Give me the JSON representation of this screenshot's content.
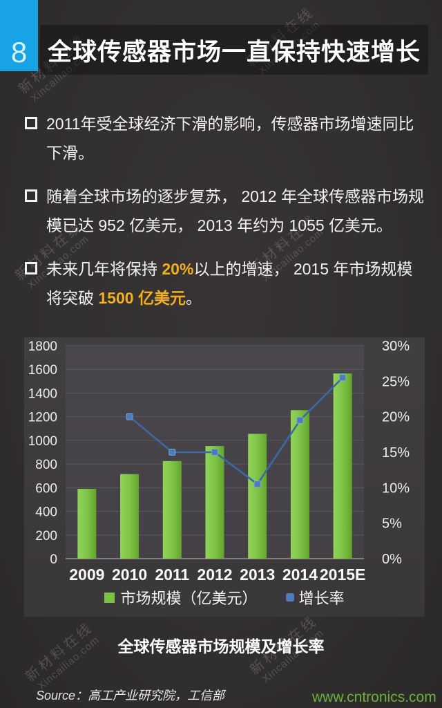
{
  "page": {
    "number": "8",
    "title": "全球传感器市场一直保持快速增长"
  },
  "bullets": [
    {
      "segments": [
        {
          "text": "2011年受全球经济下滑的影响，传感器市场增速同比下滑。",
          "highlight": false
        }
      ]
    },
    {
      "segments": [
        {
          "text": "随着全球市场的逐步复苏， 2012 年全球传感器市场规模已达 952 亿美元， 2013 年约为 1055 亿美元。",
          "highlight": false
        }
      ]
    },
    {
      "segments": [
        {
          "text": "未来几年将保持 ",
          "highlight": false
        },
        {
          "text": "20%",
          "highlight": true
        },
        {
          "text": "以上的增速， 2015 年市场规模将突破 ",
          "highlight": false
        },
        {
          "text": "1500 亿美元",
          "highlight": true
        },
        {
          "text": "。",
          "highlight": false
        }
      ]
    }
  ],
  "chart_data": {
    "type": "bar",
    "title": "全球传感器市场规模及增长率",
    "categories": [
      "2009",
      "2010",
      "2011",
      "2012",
      "2013",
      "2014",
      "2015E"
    ],
    "series": [
      {
        "name": "市场规模（亿美元）",
        "type": "bar",
        "axis": "left",
        "color": "#7cc144",
        "values": [
          590,
          715,
          825,
          952,
          1055,
          1255,
          1565
        ]
      },
      {
        "name": "增长率",
        "type": "line",
        "axis": "right",
        "color": "#3c68a6",
        "values": [
          null,
          20,
          15,
          15,
          10.5,
          19.5,
          25.5
        ]
      }
    ],
    "left_axis": {
      "min": 0,
      "max": 1800,
      "step": 200,
      "tick_labels": [
        "0",
        "200",
        "400",
        "600",
        "800",
        "1000",
        "1200",
        "1400",
        "1600",
        "1800"
      ]
    },
    "right_axis": {
      "min": 0,
      "max": 30,
      "step": 5,
      "tick_labels": [
        "0%",
        "5%",
        "10%",
        "15%",
        "20%",
        "25%",
        "30%"
      ]
    },
    "grid": true,
    "legend_position": "bottom"
  },
  "source": "Source：高工产业研究院，工信部",
  "watermarks": {
    "site": "www.cntronics.com",
    "diagonal": {
      "line1": "新材料在线",
      "line2": "Xincailiao.com"
    }
  },
  "colors": {
    "accent_blue": "#17a3e6",
    "highlight_gold": "#f1af1d",
    "bar_green": "#7cc144",
    "line_blue": "#3c68a6",
    "site_green": "#6cb13e"
  }
}
